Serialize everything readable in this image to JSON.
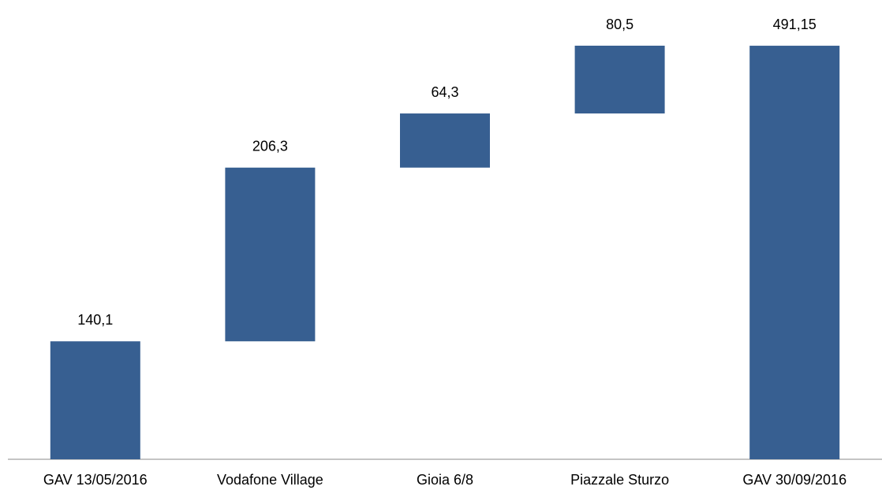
{
  "chart_data": {
    "type": "waterfall",
    "categories": [
      "GAV 13/05/2016",
      "Vodafone Village",
      "Gioia 6/8",
      "Piazzale Sturzo",
      "GAV 30/09/2016"
    ],
    "values": [
      140.1,
      206.3,
      64.3,
      80.5,
      491.15
    ],
    "value_labels": [
      "140,1",
      "206,3",
      "64,3",
      "80,5",
      "491,15"
    ],
    "measures": [
      "relative",
      "relative",
      "relative",
      "relative",
      "total"
    ],
    "color": "#375f91"
  }
}
